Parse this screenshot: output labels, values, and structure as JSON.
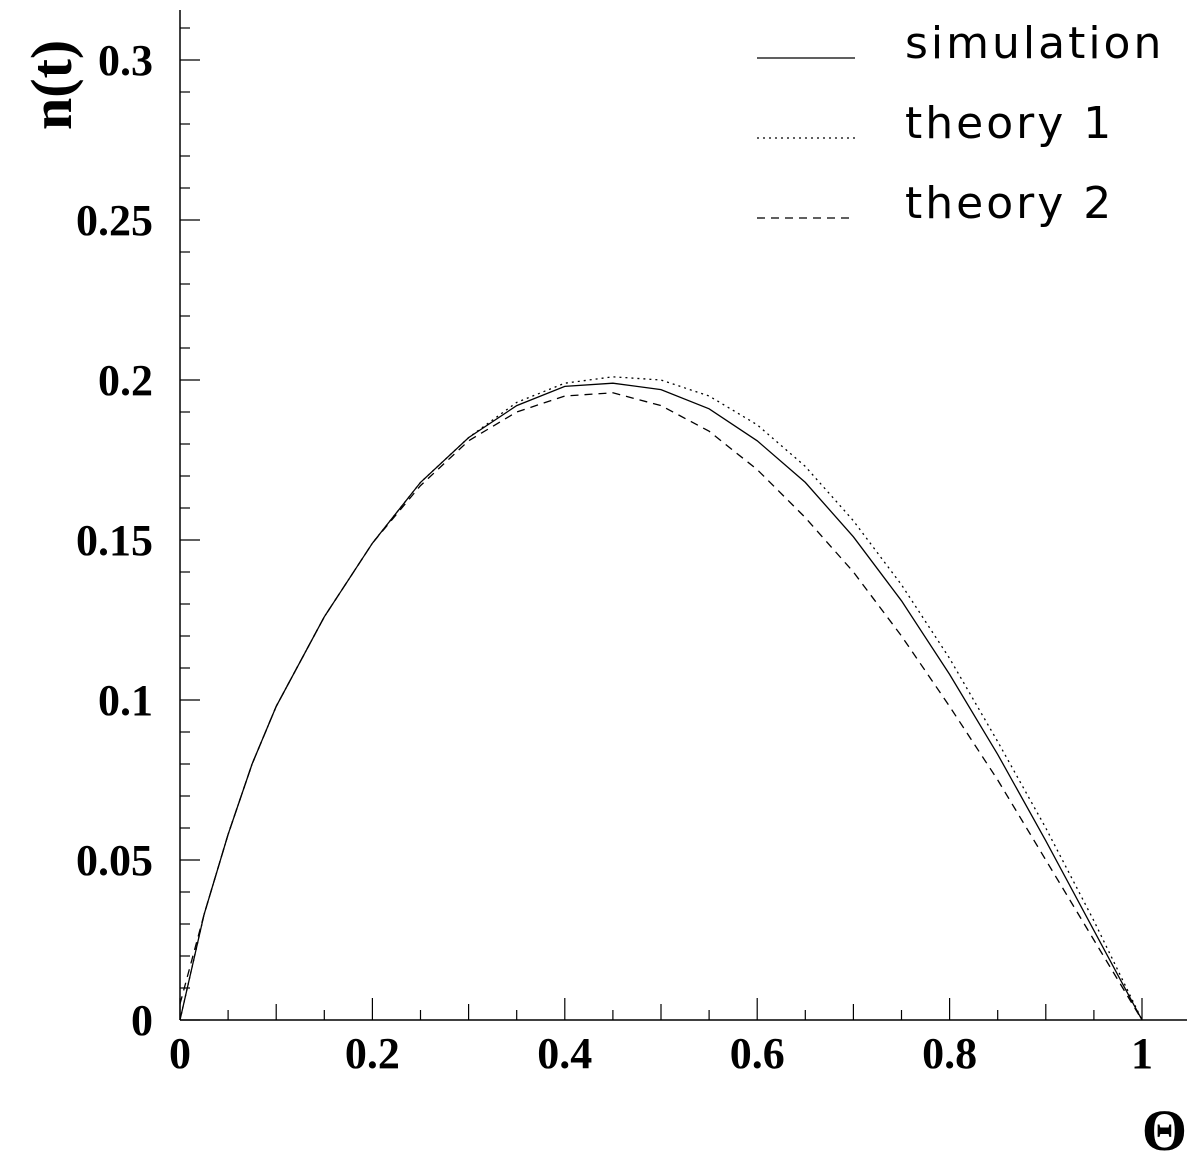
{
  "chart_data": {
    "type": "line",
    "title": "",
    "xlabel": "Θ",
    "ylabel": "n(t)",
    "xlim": [
      0,
      1.05
    ],
    "ylim": [
      0,
      0.315
    ],
    "grid": false,
    "legend_position": "top-right",
    "x_ticks": [
      "0",
      "0.2",
      "0.4",
      "0.6",
      "0.8",
      "1"
    ],
    "y_ticks": [
      "0",
      "0.05",
      "0.1",
      "0.15",
      "0.2",
      "0.25",
      "0.3"
    ],
    "x": [
      0.0,
      0.025,
      0.05,
      0.075,
      0.1,
      0.15,
      0.2,
      0.25,
      0.3,
      0.35,
      0.4,
      0.45,
      0.5,
      0.55,
      0.6,
      0.65,
      0.7,
      0.75,
      0.8,
      0.85,
      0.9,
      0.95,
      1.0
    ],
    "series": [
      {
        "name": "simulation",
        "style": "solid",
        "values": [
          0.0,
          0.033,
          0.058,
          0.08,
          0.098,
          0.126,
          0.149,
          0.168,
          0.182,
          0.192,
          0.198,
          0.199,
          0.197,
          0.191,
          0.181,
          0.168,
          0.151,
          0.131,
          0.108,
          0.083,
          0.056,
          0.028,
          0.0
        ]
      },
      {
        "name": "theory 1",
        "style": "dotted",
        "values": [
          0.0,
          0.033,
          0.058,
          0.08,
          0.098,
          0.126,
          0.149,
          0.168,
          0.182,
          0.193,
          0.199,
          0.201,
          0.2,
          0.195,
          0.186,
          0.173,
          0.156,
          0.136,
          0.113,
          0.087,
          0.06,
          0.031,
          0.0
        ]
      },
      {
        "name": "theory 2",
        "style": "dashed",
        "values": [
          0.005,
          0.033,
          0.058,
          0.08,
          0.098,
          0.126,
          0.149,
          0.167,
          0.181,
          0.19,
          0.195,
          0.196,
          0.192,
          0.184,
          0.172,
          0.157,
          0.14,
          0.12,
          0.098,
          0.075,
          0.05,
          0.025,
          0.0
        ]
      }
    ]
  }
}
